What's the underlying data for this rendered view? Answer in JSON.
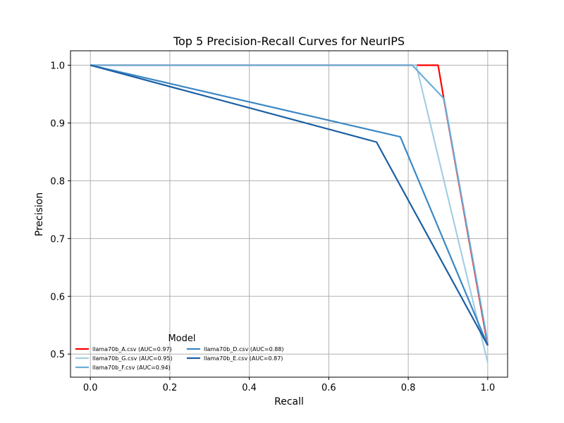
{
  "chart_data": {
    "type": "line",
    "title": "Top 5 Precision-Recall Curves for NeurIPS",
    "xlabel": "Recall",
    "ylabel": "Precision",
    "xlim": [
      -0.05,
      1.05
    ],
    "ylim": [
      0.46,
      1.025
    ],
    "xticks": [
      "0.0",
      "0.2",
      "0.4",
      "0.6",
      "0.8",
      "1.0"
    ],
    "yticks": [
      "0.5",
      "0.6",
      "0.7",
      "0.8",
      "0.9",
      "1.0"
    ],
    "grid": true,
    "legend": {
      "title": "Model",
      "placement": "lower-left",
      "ncol": 2
    },
    "series": [
      {
        "name": "llama70b_A.csv (AUC=0.97)",
        "color": "#ff0000",
        "x": [
          0.0,
          0.875,
          0.89,
          1.0
        ],
        "y": [
          1.0,
          1.0,
          0.94,
          0.515
        ]
      },
      {
        "name": "llama70b_G.csv (AUC=0.95)",
        "color": "#a6cee3",
        "x": [
          0.0,
          0.82,
          1.0
        ],
        "y": [
          1.0,
          1.0,
          0.485
        ]
      },
      {
        "name": "llama70b_F.csv (AUC=0.94)",
        "color": "#6baed6",
        "x": [
          0.0,
          0.81,
          0.89,
          1.0
        ],
        "y": [
          1.0,
          1.0,
          0.942,
          0.52
        ]
      },
      {
        "name": "llama70b_D.csv (AUC=0.88)",
        "color": "#3a87c4",
        "x": [
          0.0,
          0.78,
          1.0
        ],
        "y": [
          1.0,
          0.876,
          0.515
        ]
      },
      {
        "name": "llama70b_E.csv (AUC=0.87)",
        "color": "#1a5ea3",
        "x": [
          0.0,
          0.72,
          1.0
        ],
        "y": [
          1.0,
          0.867,
          0.515
        ]
      }
    ]
  }
}
